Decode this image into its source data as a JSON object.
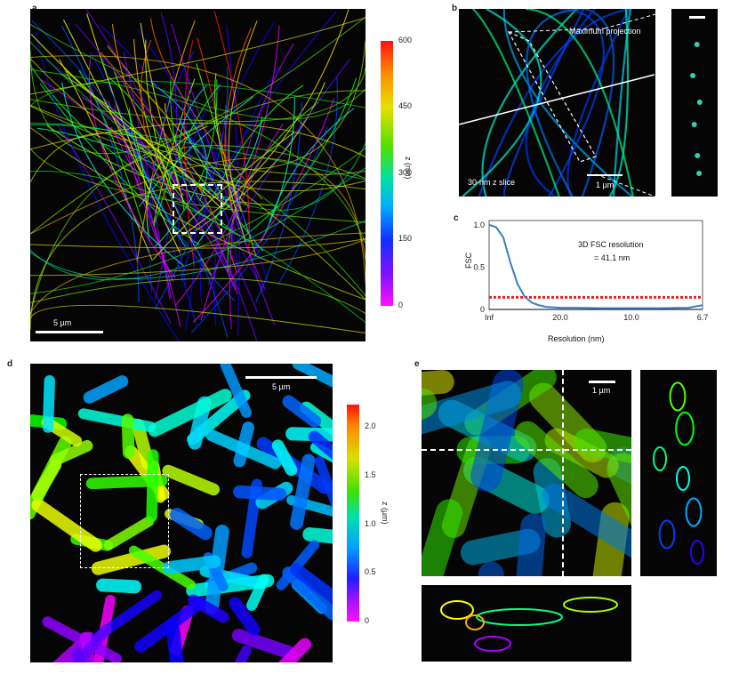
{
  "panels": {
    "a": {
      "letter": "a",
      "scalebar": "5 µm",
      "colorbar": {
        "label": "z (nm)",
        "ticks": [
          "600",
          "450",
          "300",
          "150",
          "0"
        ]
      }
    },
    "b": {
      "letter": "b",
      "annotation_top": "Maximum projection",
      "annotation_bottom": "30-nm z slice",
      "scalebar": "1 µm"
    },
    "c": {
      "letter": "c",
      "ylabel": "FSC",
      "xlabel": "Resolution (nm)",
      "annotation_line1": "3D FSC resolution",
      "annotation_line2": "= 41.1 nm",
      "yticks": [
        "1.0",
        "0.5",
        "0"
      ],
      "xticks": [
        "Inf",
        "20.0",
        "10.0",
        "6.7"
      ]
    },
    "d": {
      "letter": "d",
      "scalebar": "5 µm",
      "colorbar": {
        "label": "z (µm)",
        "ticks": [
          "2.0",
          "1.5",
          "1.0",
          "0.5",
          "0"
        ]
      }
    },
    "e": {
      "letter": "e",
      "scalebar": "1 µm"
    }
  },
  "chart_data": {
    "type": "line",
    "xlabel": "Resolution (nm)",
    "ylabel": "FSC",
    "x_tick_labels": [
      "Inf",
      "20.0",
      "10.0",
      "6.7"
    ],
    "x_spatial_frequency": [
      0,
      0.005,
      0.01,
      0.015,
      0.02,
      0.025,
      0.03,
      0.035,
      0.04,
      0.05,
      0.06,
      0.08,
      0.1,
      0.12,
      0.14,
      0.15
    ],
    "series": [
      {
        "values": [
          1.0,
          0.97,
          0.85,
          0.55,
          0.3,
          0.15,
          0.08,
          0.05,
          0.03,
          0.02,
          0.02,
          0.015,
          0.015,
          0.015,
          0.02,
          0.05
        ]
      }
    ],
    "threshold": 0.143,
    "ylim": [
      0,
      1.05
    ],
    "xlim": [
      0,
      0.15
    ],
    "colors": {
      "curve": "#3a7fc1",
      "threshold": "#e32222"
    }
  }
}
